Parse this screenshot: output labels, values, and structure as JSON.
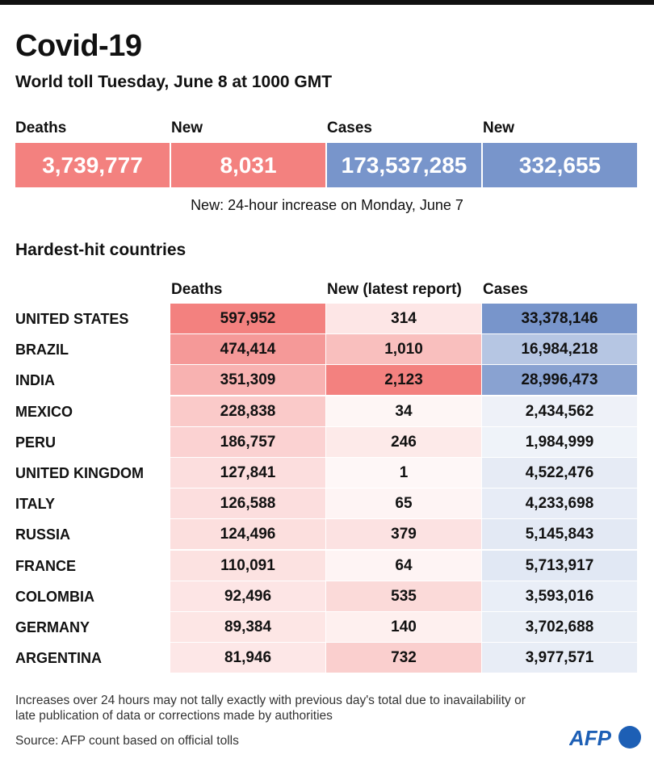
{
  "title": "Covid-19",
  "subtitle": "World toll Tuesday, June 8 at 1000 GMT",
  "world": [
    {
      "label": "Deaths",
      "value": "3,739,777"
    },
    {
      "label": "New",
      "value": "8,031"
    },
    {
      "label": "Cases",
      "value": "173,537,285"
    },
    {
      "label": "New",
      "value": "332,655"
    }
  ],
  "note": "New: 24-hour increase on Monday, June 7",
  "footnote": "Increases over 24 hours may not tally exactly with previous day's total due to inavailability or late publication of data or corrections made by authorities",
  "source": "Source: AFP count based on official tolls",
  "logo_text": "AFP",
  "colors": {
    "red": "#f3817f",
    "blue": "#7895cb"
  },
  "chart_data": {
    "type": "table",
    "title": "Hardest-hit countries",
    "columns": [
      "Deaths",
      "New (latest report)",
      "Cases"
    ],
    "rows": [
      {
        "country": "UNITED STATES",
        "deaths": "597,952",
        "new": "314",
        "cases": "33,378,146"
      },
      {
        "country": "BRAZIL",
        "deaths": "474,414",
        "new": "1,010",
        "cases": "16,984,218"
      },
      {
        "country": "INDIA",
        "deaths": "351,309",
        "new": "2,123",
        "cases": "28,996,473"
      },
      {
        "country": "MEXICO",
        "deaths": "228,838",
        "new": "34",
        "cases": "2,434,562"
      },
      {
        "country": "PERU",
        "deaths": "186,757",
        "new": "246",
        "cases": "1,984,999"
      },
      {
        "country": "UNITED KINGDOM",
        "deaths": "127,841",
        "new": "1",
        "cases": "4,522,476"
      },
      {
        "country": "ITALY",
        "deaths": "126,588",
        "new": "65",
        "cases": "4,233,698"
      },
      {
        "country": "RUSSIA",
        "deaths": "124,496",
        "new": "379",
        "cases": "5,145,843"
      },
      {
        "country": "FRANCE",
        "deaths": "110,091",
        "new": "64",
        "cases": "5,713,917"
      },
      {
        "country": "COLOMBIA",
        "deaths": "92,496",
        "new": "535",
        "cases": "3,593,016"
      },
      {
        "country": "GERMANY",
        "deaths": "89,384",
        "new": "140",
        "cases": "3,702,688"
      },
      {
        "country": "ARGENTINA",
        "deaths": "81,946",
        "new": "732",
        "cases": "3,977,571"
      }
    ]
  }
}
